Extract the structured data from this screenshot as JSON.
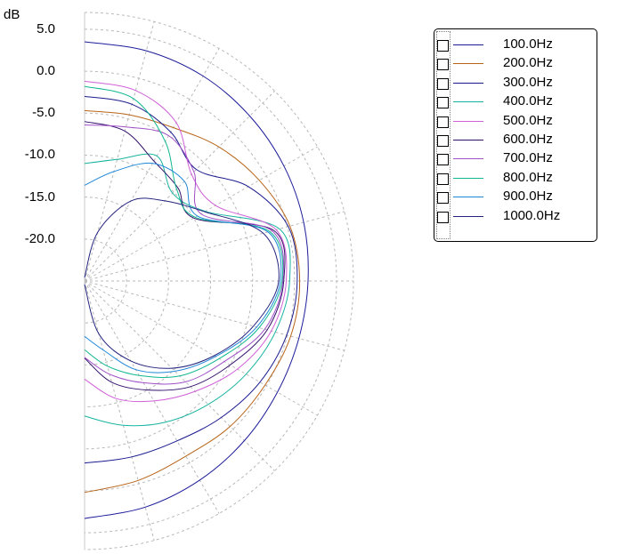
{
  "chart_data": {
    "type": "polar",
    "unit_label": "dB",
    "r_ticks": [
      "5.0",
      "0.0",
      "-5.0",
      "-10.0",
      "-15.0",
      "-20.0"
    ],
    "r_min": -25,
    "r_max": 7,
    "angle_step_deg": 15,
    "grid": true,
    "legend_position": "top-right",
    "series": [
      {
        "name": "100.0Hz",
        "color": "#1c1c9a",
        "levels_db": [
          3.5,
          3.4,
          3.2,
          2.8,
          2.4,
          2.0,
          1.6,
          1.4,
          1.5,
          1.9,
          2.4,
          2.9,
          3.3
        ]
      },
      {
        "name": "200.0Hz",
        "color": "#b86418",
        "levels_db": [
          -4.7,
          -4.5,
          -3.9,
          -2.4,
          -1.0,
          0.3,
          0.6,
          0.4,
          -0.2,
          -0.5,
          -0.9,
          -0.4,
          0.2
        ]
      },
      {
        "name": "300.0Hz",
        "color": "#1a1a8e",
        "levels_db": [
          -3.0,
          -3.2,
          -4.5,
          -6.2,
          -2.5,
          0.1,
          0.3,
          -0.1,
          -0.9,
          -2.0,
          -3.0,
          -3.3,
          -3.3
        ]
      },
      {
        "name": "400.0Hz",
        "color": "#18b4a0",
        "levels_db": [
          -11.0,
          -10.0,
          -7.8,
          -10.2,
          -8.4,
          -1.0,
          -0.6,
          -1.5,
          -2.8,
          -4.2,
          -5.6,
          -7.2,
          -8.9
        ]
      },
      {
        "name": "500.0Hz",
        "color": "#d060d8",
        "levels_db": [
          -1.2,
          -1.5,
          -3.2,
          -7.0,
          -7.0,
          -1.4,
          -1.0,
          -2.0,
          -4.0,
          -6.4,
          -8.5,
          -10.5,
          -13.3
        ]
      },
      {
        "name": "600.0Hz",
        "color": "#32106a",
        "levels_db": [
          -6.0,
          -6.5,
          -8.5,
          -9.3,
          -10.0,
          -1.7,
          -1.3,
          -2.5,
          -5.0,
          -7.2,
          -10.0,
          -12.5,
          -15.8
        ]
      },
      {
        "name": "700.0Hz",
        "color": "#a050c8",
        "levels_db": [
          -6.4,
          -6.0,
          -5.0,
          -6.6,
          -9.0,
          -1.9,
          -1.4,
          -2.8,
          -5.8,
          -8.0,
          -11.0,
          -13.5,
          -15.9
        ]
      },
      {
        "name": "800.0Hz",
        "color": "#10b890",
        "levels_db": [
          -1.8,
          -2.5,
          -5.8,
          -9.5,
          -9.8,
          -2.2,
          -1.5,
          -3.5,
          -6.5,
          -9.0,
          -12.0,
          -14.5,
          -16.8
        ]
      },
      {
        "name": "900.0Hz",
        "color": "#2088d8",
        "levels_db": [
          -13.6,
          -11.5,
          -8.8,
          -8.2,
          -9.5,
          -2.4,
          -1.7,
          -3.8,
          -7.0,
          -9.8,
          -12.8,
          -16.5,
          -18.4
        ]
      },
      {
        "name": "1000.0Hz",
        "color": "#23237e",
        "levels_db": [
          -24.6,
          -19.0,
          -14.0,
          -11.5,
          -8.5,
          -3.0,
          -1.9,
          -4.2,
          -7.2,
          -10.3,
          -14.0,
          -18.5,
          -24.6
        ]
      }
    ]
  }
}
